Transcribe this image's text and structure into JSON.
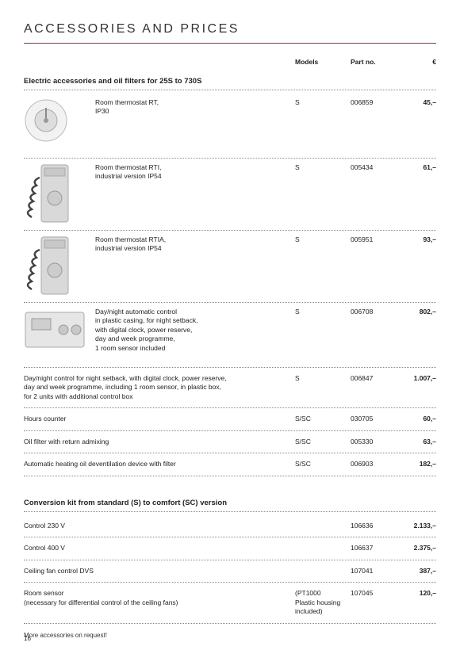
{
  "title": "ACCESSORIES AND PRICES",
  "headers": {
    "models": "Models",
    "part": "Part no.",
    "price": "€"
  },
  "section1": {
    "title": "Electric accessories and oil filters for 25S to 730S",
    "rows": [
      {
        "desc": "Room thermostat RT,\nIP30",
        "model": "S",
        "part": "006859",
        "price": "45,–",
        "img": "dial"
      },
      {
        "desc": "Room thermostat RTI,\nindustrial version IP54",
        "model": "S",
        "part": "005434",
        "price": "61,–",
        "img": "box-coil"
      },
      {
        "desc": "Room thermostat RTIA,\nindustrial version IP54",
        "model": "S",
        "part": "005951",
        "price": "93,–",
        "img": "box-coil"
      },
      {
        "desc": "Day/night automatic control\nin plastic casing, for night setback,\nwith digital clock, power reserve,\nday and week programme,\n1 room sensor included",
        "model": "S",
        "part": "006708",
        "price": "802,–",
        "img": "panel"
      },
      {
        "desc": "Day/night control for night setback, with digital clock, power reserve,\nday and week programme, including 1 room sensor, in plastic box,\nfor 2 units with additional control box",
        "model": "S",
        "part": "006847",
        "price": "1.007,–",
        "img": null,
        "wide": true
      },
      {
        "desc": "Hours counter",
        "model": "S/SC",
        "part": "030705",
        "price": "60,–",
        "img": null,
        "wide": true
      },
      {
        "desc": "Oil filter with return admixing",
        "model": "S/SC",
        "part": "005330",
        "price": "63,–",
        "img": null,
        "wide": true
      },
      {
        "desc": "Automatic heating oil deventilation device with filter",
        "model": "S/SC",
        "part": "006903",
        "price": "182,–",
        "img": null,
        "wide": true
      }
    ]
  },
  "section2": {
    "title": "Conversion kit from standard (S) to comfort (SC) version",
    "rows": [
      {
        "desc": "Control 230 V",
        "model": "",
        "part": "106636",
        "price": "2.133,–"
      },
      {
        "desc": "Control 400 V",
        "model": "",
        "part": "106637",
        "price": "2.375,–"
      },
      {
        "desc": "Ceiling fan control DVS",
        "model": "",
        "part": "107041",
        "price": "387,–"
      },
      {
        "desc": "Room sensor\n(necessary for differential control of the ceiling fans)",
        "model": "(PT1000\nPlastic housing\nincluded)",
        "part": "107045",
        "price": "120,–"
      }
    ]
  },
  "footnote": "More accessories on request!",
  "pageNumber": "16",
  "colors": {
    "accent": "#e6007e",
    "text": "#222222",
    "imgbg": "#e8e8e8"
  }
}
